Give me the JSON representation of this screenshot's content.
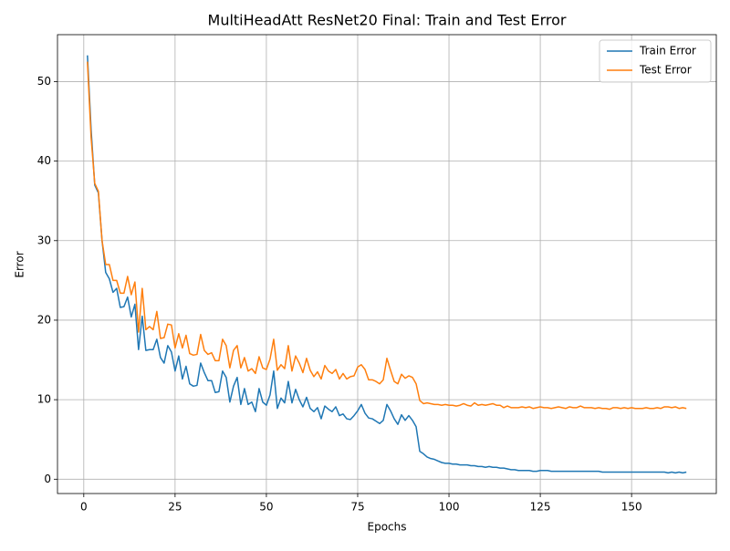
{
  "chart_data": {
    "type": "line",
    "title": "MultiHeadAtt ResNet20 Final: Train and Test Error",
    "xlabel": "Epochs",
    "ylabel": "Error",
    "x": [
      1,
      2,
      3,
      4,
      5,
      6,
      7,
      8,
      9,
      10,
      11,
      12,
      13,
      14,
      15,
      16,
      17,
      18,
      19,
      20,
      21,
      22,
      23,
      24,
      25,
      26,
      27,
      28,
      29,
      30,
      31,
      32,
      33,
      34,
      35,
      36,
      37,
      38,
      39,
      40,
      41,
      42,
      43,
      44,
      45,
      46,
      47,
      48,
      49,
      50,
      51,
      52,
      53,
      54,
      55,
      56,
      57,
      58,
      59,
      60,
      61,
      62,
      63,
      64,
      65,
      66,
      67,
      68,
      69,
      70,
      71,
      72,
      73,
      74,
      75,
      76,
      77,
      78,
      79,
      80,
      81,
      82,
      83,
      84,
      85,
      86,
      87,
      88,
      89,
      90,
      91,
      92,
      93,
      94,
      95,
      96,
      97,
      98,
      99,
      100,
      101,
      102,
      103,
      104,
      105,
      106,
      107,
      108,
      109,
      110,
      111,
      112,
      113,
      114,
      115,
      116,
      117,
      118,
      119,
      120,
      121,
      122,
      123,
      124,
      125,
      126,
      127,
      128,
      129,
      130,
      131,
      132,
      133,
      134,
      135,
      136,
      137,
      138,
      139,
      140,
      141,
      142,
      143,
      144,
      145,
      146,
      147,
      148,
      149,
      150,
      151,
      152,
      153,
      154,
      155,
      156,
      157,
      158,
      159,
      160,
      161,
      162,
      163,
      164,
      165
    ],
    "series": [
      {
        "name": "Train Error",
        "color": "#1f77b4",
        "values": [
          53.3,
          44,
          37,
          36,
          30,
          26,
          25.2,
          23.5,
          24,
          21.6,
          21.7,
          22.9,
          20.4,
          22,
          16.3,
          20.5,
          16.2,
          16.3,
          16.3,
          17.6,
          15.3,
          14.6,
          16.8,
          16,
          13.6,
          15.5,
          12.6,
          14.2,
          12,
          11.7,
          11.8,
          14.6,
          13.4,
          12.4,
          12.4,
          10.9,
          11,
          13.6,
          12.8,
          9.7,
          11.7,
          12.8,
          9.4,
          11.4,
          9.4,
          9.7,
          8.5,
          11.4,
          9.7,
          9.3,
          10.6,
          13.6,
          8.9,
          10.2,
          9.6,
          12.3,
          9.6,
          11.3,
          10,
          9.1,
          10.3,
          8.9,
          8.5,
          9,
          7.6,
          9.2,
          8.8,
          8.5,
          9.1,
          8,
          8.2,
          7.6,
          7.5,
          8,
          8.6,
          9.4,
          8.3,
          7.7,
          7.6,
          7.3,
          7,
          7.4,
          9.4,
          8.6,
          7.6,
          6.9,
          8.1,
          7.4,
          8,
          7.4,
          6.6,
          3.5,
          3.2,
          2.8,
          2.6,
          2.5,
          2.3,
          2.1,
          2.0,
          2.0,
          1.9,
          1.9,
          1.8,
          1.8,
          1.8,
          1.7,
          1.7,
          1.6,
          1.6,
          1.5,
          1.6,
          1.5,
          1.5,
          1.4,
          1.4,
          1.3,
          1.2,
          1.2,
          1.1,
          1.1,
          1.1,
          1.1,
          1.0,
          1.0,
          1.1,
          1.1,
          1.1,
          1.0,
          1.0,
          1.0,
          1.0,
          1.0,
          1.0,
          1.0,
          1.0,
          1.0,
          1.0,
          1.0,
          1.0,
          1.0,
          1.0,
          0.9,
          0.9,
          0.9,
          0.9,
          0.9,
          0.9,
          0.9,
          0.9,
          0.9,
          0.9,
          0.9,
          0.9,
          0.9,
          0.9,
          0.9,
          0.9,
          0.9,
          0.9,
          0.8,
          0.9,
          0.8,
          0.9,
          0.8,
          0.9
        ]
      },
      {
        "name": "Test Error",
        "color": "#ff7f0e",
        "values": [
          52.5,
          43,
          37.2,
          36.2,
          30,
          27,
          27,
          25,
          25,
          23.4,
          23.4,
          25.5,
          23.2,
          24.8,
          18.5,
          24,
          18.8,
          19.2,
          18.8,
          21.1,
          17.7,
          17.8,
          19.5,
          19.4,
          16.5,
          18.3,
          16.5,
          18.1,
          15.8,
          15.6,
          15.7,
          18.2,
          16.2,
          15.7,
          15.9,
          14.9,
          14.9,
          17.6,
          16.8,
          14,
          16.2,
          16.8,
          14,
          15.3,
          13.6,
          13.9,
          13.3,
          15.4,
          14,
          13.8,
          15.1,
          17.6,
          13.7,
          14.4,
          13.9,
          16.8,
          13.6,
          15.5,
          14.6,
          13.4,
          15.2,
          13.7,
          12.9,
          13.5,
          12.6,
          14.3,
          13.6,
          13.3,
          13.8,
          12.6,
          13.3,
          12.6,
          12.9,
          13,
          14.1,
          14.4,
          13.8,
          12.5,
          12.5,
          12.3,
          12,
          12.5,
          15.2,
          13.7,
          12.3,
          12.0,
          13.2,
          12.7,
          13,
          12.8,
          12,
          9.9,
          9.5,
          9.6,
          9.5,
          9.4,
          9.4,
          9.3,
          9.4,
          9.3,
          9.3,
          9.2,
          9.3,
          9.5,
          9.3,
          9.2,
          9.6,
          9.3,
          9.4,
          9.3,
          9.4,
          9.5,
          9.3,
          9.3,
          9.0,
          9.2,
          9.0,
          9.0,
          9.0,
          9.1,
          9.0,
          9.1,
          8.9,
          9.0,
          9.1,
          9.0,
          9.0,
          8.9,
          9.0,
          9.1,
          9.0,
          8.9,
          9.1,
          9.0,
          9.0,
          9.2,
          9.0,
          9.0,
          9.0,
          8.9,
          9.0,
          8.9,
          8.9,
          8.8,
          9.0,
          9.0,
          8.9,
          9.0,
          8.9,
          9.0,
          8.9,
          8.9,
          8.9,
          9.0,
          8.9,
          8.9,
          9.0,
          8.9,
          9.1,
          9.1,
          9.0,
          9.1,
          8.9,
          9.0,
          8.9
        ]
      }
    ],
    "xlim": [
      -7.2,
      173.2
    ],
    "xticks": [
      0,
      25,
      50,
      75,
      100,
      125,
      150
    ],
    "ylim": [
      -1.8,
      55.9
    ],
    "yticks": [
      0,
      10,
      20,
      30,
      40,
      50
    ],
    "grid": true,
    "legend": "upper right"
  }
}
